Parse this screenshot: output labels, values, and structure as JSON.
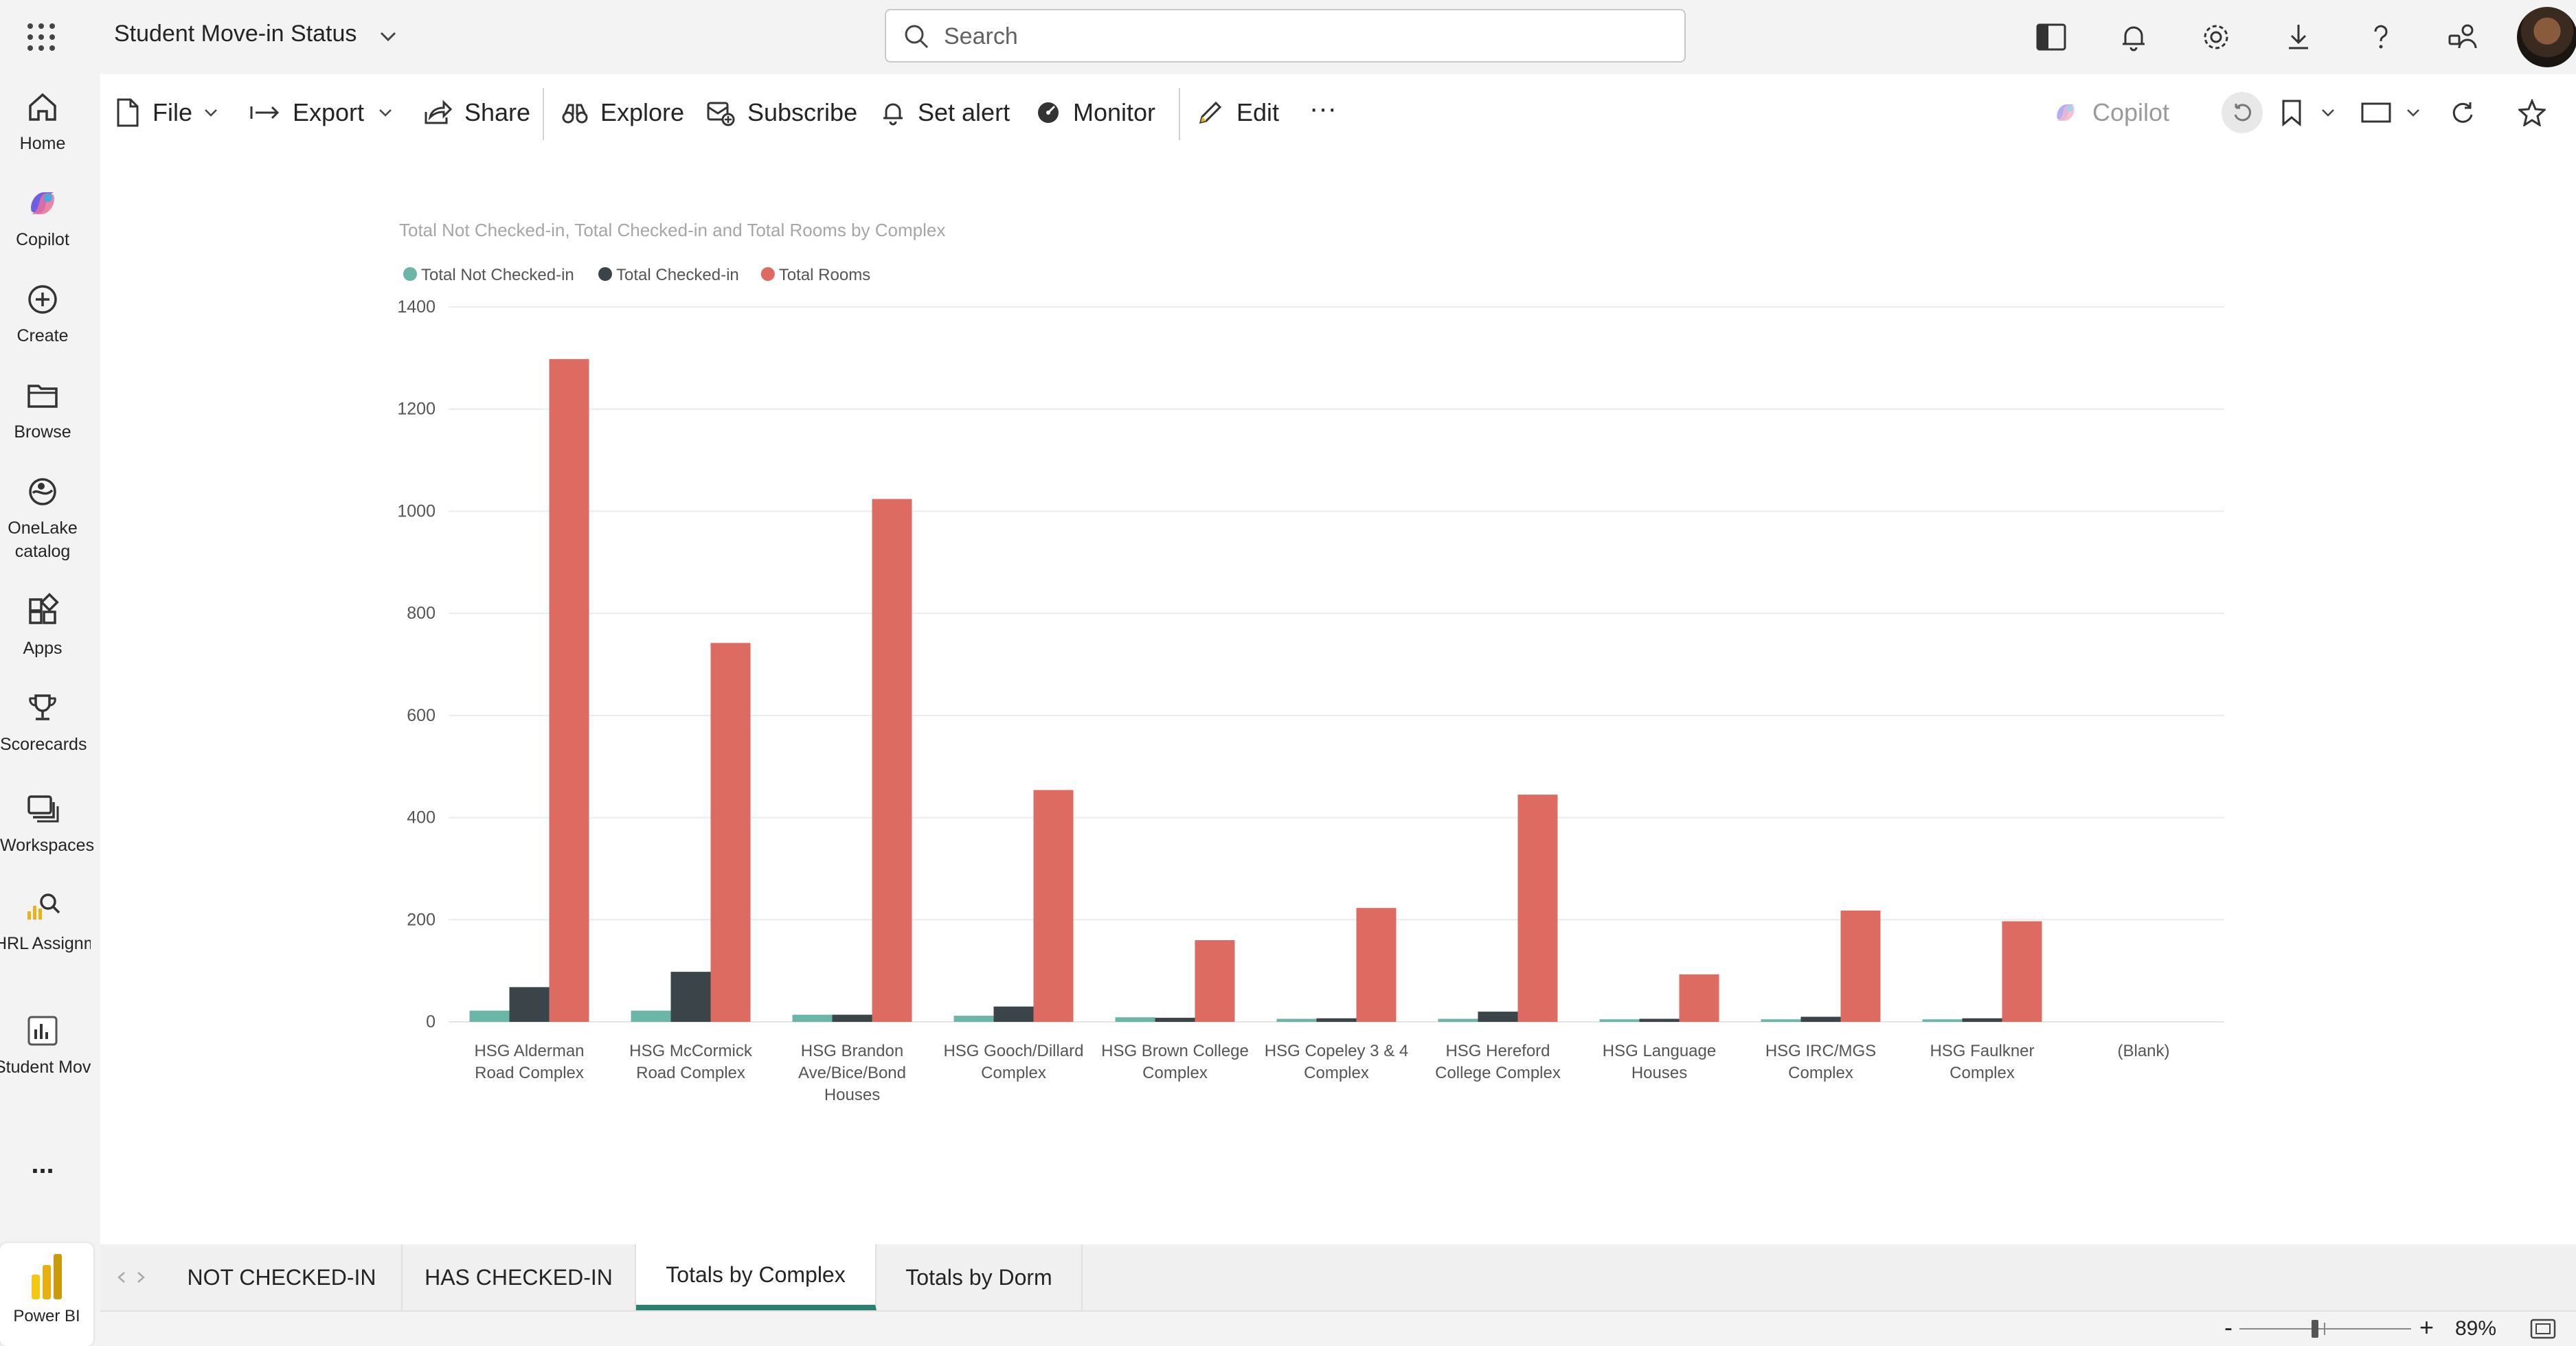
{
  "header": {
    "app_title": "Student Move-in Status",
    "search_placeholder": "Search"
  },
  "rail": {
    "items": [
      {
        "label": "Home",
        "icon": "home-icon"
      },
      {
        "label": "Copilot",
        "icon": "copilot-icon"
      },
      {
        "label": "Create",
        "icon": "create-icon"
      },
      {
        "label": "Browse",
        "icon": "folder-icon"
      },
      {
        "label": "OneLake catalog",
        "icon": "onelake-icon"
      },
      {
        "label": "Apps",
        "icon": "apps-icon"
      },
      {
        "label": "Scorecards",
        "icon": "trophy-icon"
      },
      {
        "label": "Workspaces",
        "icon": "workspaces-icon"
      },
      {
        "label": "HRL Assignmen...",
        "icon": "hrl-icon"
      },
      {
        "label": "Student Move-in ...",
        "icon": "report-icon"
      }
    ],
    "more": "...",
    "power_bi_label": "Power BI"
  },
  "toolbar": {
    "file": "File",
    "export": "Export",
    "share": "Share",
    "explore": "Explore",
    "subscribe": "Subscribe",
    "set_alert": "Set alert",
    "monitor": "Monitor",
    "edit": "Edit",
    "more": "···",
    "copilot": "Copilot"
  },
  "chart_data": {
    "type": "bar",
    "title": "Total Not Checked-in, Total Checked-in and Total Rooms by Complex",
    "legend_placement": "top-left",
    "categories": [
      [
        "HSG Alderman",
        "Road Complex"
      ],
      [
        "HSG McCormick",
        "Road Complex"
      ],
      [
        "HSG Brandon",
        "Ave/Bice/Bond",
        "Houses"
      ],
      [
        "HSG Gooch/Dillard",
        "Complex"
      ],
      [
        "HSG Brown College",
        "Complex"
      ],
      [
        "HSG Copeley 3 & 4",
        "Complex"
      ],
      [
        "HSG Hereford",
        "College Complex"
      ],
      [
        "HSG Language",
        "Houses"
      ],
      [
        "HSG IRC/MGS",
        "Complex"
      ],
      [
        "HSG Faulkner",
        "Complex"
      ],
      [
        "(Blank)"
      ]
    ],
    "series": [
      {
        "name": "Total Not Checked-in",
        "color": "#6ab7a8",
        "values": [
          22,
          22,
          14,
          12,
          9,
          6,
          6,
          5,
          5,
          5,
          0
        ]
      },
      {
        "name": "Total Checked-in",
        "color": "#3b4449",
        "values": [
          68,
          98,
          14,
          30,
          8,
          7,
          20,
          6,
          10,
          7,
          0
        ]
      },
      {
        "name": "Total Rooms",
        "color": "#dd6b62",
        "values": [
          1298,
          742,
          1024,
          454,
          160,
          223,
          445,
          93,
          218,
          197,
          0
        ]
      }
    ],
    "ylim": [
      0,
      1400
    ],
    "yticks": [
      "0",
      "200",
      "400",
      "600",
      "800",
      "1000",
      "1200",
      "1400"
    ],
    "grid": true
  },
  "pages": {
    "tabs": [
      "NOT CHECKED-IN",
      "HAS CHECKED-IN",
      "Totals by Complex",
      "Totals by Dorm"
    ],
    "active_index": 2
  },
  "status": {
    "zoom_minus": "-",
    "zoom_plus": "+",
    "zoom_value": "89%",
    "zoom_fraction": 0.44
  }
}
